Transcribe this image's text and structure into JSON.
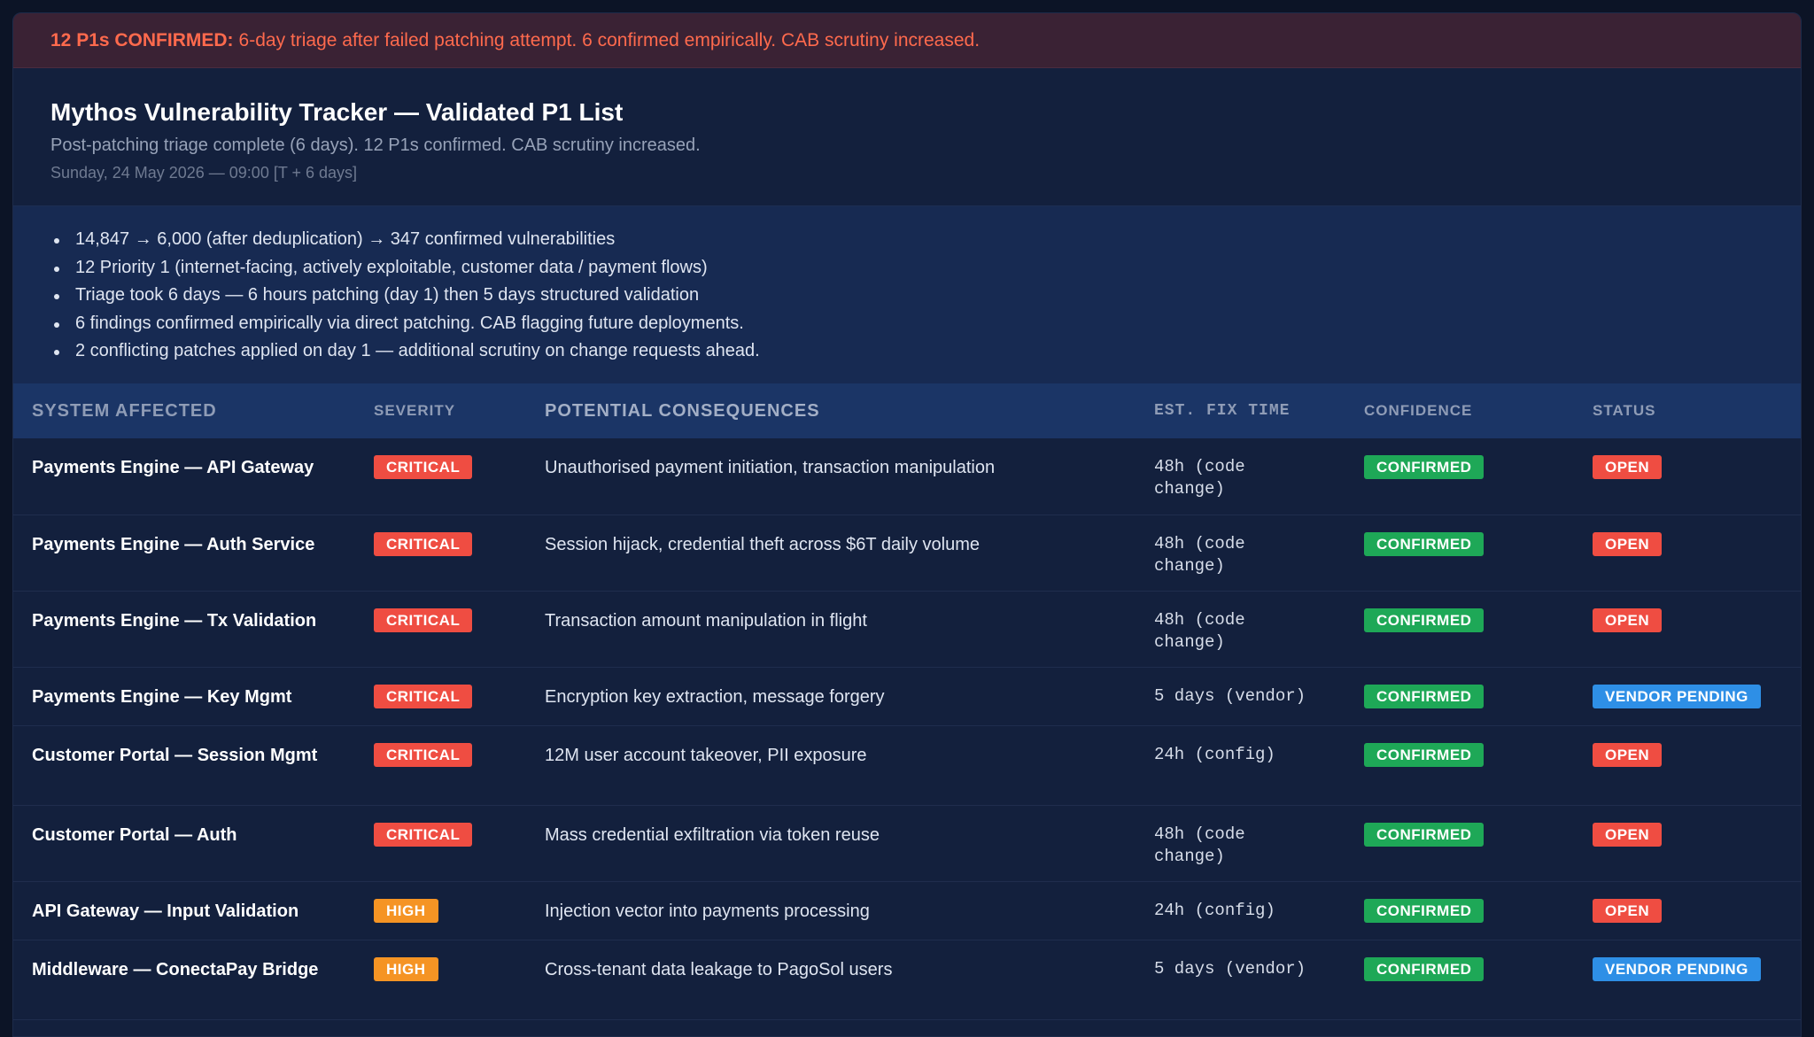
{
  "alert": {
    "strong": "12 P1s CONFIRMED:",
    "text": "6-day triage after failed patching attempt. 6 confirmed empirically. CAB scrutiny increased."
  },
  "header": {
    "title": "Mythos Vulnerability Tracker — Validated P1 List",
    "subtitle": "Post-patching triage complete (6 days). 12 P1s confirmed. CAB scrutiny increased.",
    "timestamp": "Sunday, 24 May 2026 — 09:00 [T + 6 days]"
  },
  "summary": [
    "14,847 → 6,000 (after deduplication) → 347 confirmed vulnerabilities",
    "12 Priority 1 (internet-facing, actively exploitable, customer data / payment flows)",
    "Triage took 6 days — 6 hours patching (day 1) then 5 days structured validation",
    "6 findings confirmed empirically via direct patching. CAB flagging future deployments.",
    "2 conflicting patches applied on day 1 — additional scrutiny on change requests ahead."
  ],
  "columns": {
    "system": "SYSTEM AFFECTED",
    "severity": "SEVERITY",
    "consequences": "POTENTIAL CONSEQUENCES",
    "fix": "EST. FIX TIME",
    "confidence": "CONFIDENCE",
    "status": "STATUS"
  },
  "colors": {
    "critical": "#ef4d42",
    "high": "#f59424",
    "confirmed": "#1ea857",
    "open": "#ef4d42",
    "vendor_pending": "#2e8fe6"
  },
  "rows": [
    {
      "system": "Payments Engine — API Gateway",
      "severity": "CRITICAL",
      "consequences": "Unauthorised payment initiation, transaction manipulation",
      "fix_a": "48h (code",
      "fix_b": "change)",
      "confidence": "CONFIRMED",
      "status": "OPEN"
    },
    {
      "system": "Payments Engine — Auth Service",
      "severity": "CRITICAL",
      "consequences": "Session hijack, credential theft across $6T daily volume",
      "fix_a": "48h (code",
      "fix_b": "change)",
      "confidence": "CONFIRMED",
      "status": "OPEN"
    },
    {
      "system": "Payments Engine — Tx Validation",
      "severity": "CRITICAL",
      "consequences": "Transaction amount manipulation in flight",
      "fix_a": "48h (code",
      "fix_b": "change)",
      "confidence": "CONFIRMED",
      "status": "OPEN"
    },
    {
      "system": "Payments Engine — Key Mgmt",
      "severity": "CRITICAL",
      "consequences": "Encryption key extraction, message forgery",
      "fix_a": "5 days (vendor)",
      "fix_b": "",
      "confidence": "CONFIRMED",
      "status": "VENDOR PENDING"
    },
    {
      "system": "Customer Portal — Session Mgmt",
      "severity": "CRITICAL",
      "consequences": "12M user account takeover, PII exposure",
      "fix_a": "24h (config)",
      "fix_b": "",
      "confidence": "CONFIRMED",
      "status": "OPEN"
    },
    {
      "system": "Customer Portal — Auth",
      "severity": "CRITICAL",
      "consequences": "Mass credential exfiltration via token reuse",
      "fix_a": "48h (code",
      "fix_b": "change)",
      "confidence": "CONFIRMED",
      "status": "OPEN"
    },
    {
      "system": "API Gateway — Input Validation",
      "severity": "HIGH",
      "consequences": "Injection vector into payments processing",
      "fix_a": "24h (config)",
      "fix_b": "",
      "confidence": "CONFIRMED",
      "status": "OPEN"
    },
    {
      "system": "Middleware — ConectaPay Bridge",
      "severity": "HIGH",
      "consequences": "Cross-tenant data leakage to PagoSol users",
      "fix_a": "5 days (vendor)",
      "fix_b": "",
      "confidence": "CONFIRMED",
      "status": "VENDOR PENDING"
    }
  ]
}
